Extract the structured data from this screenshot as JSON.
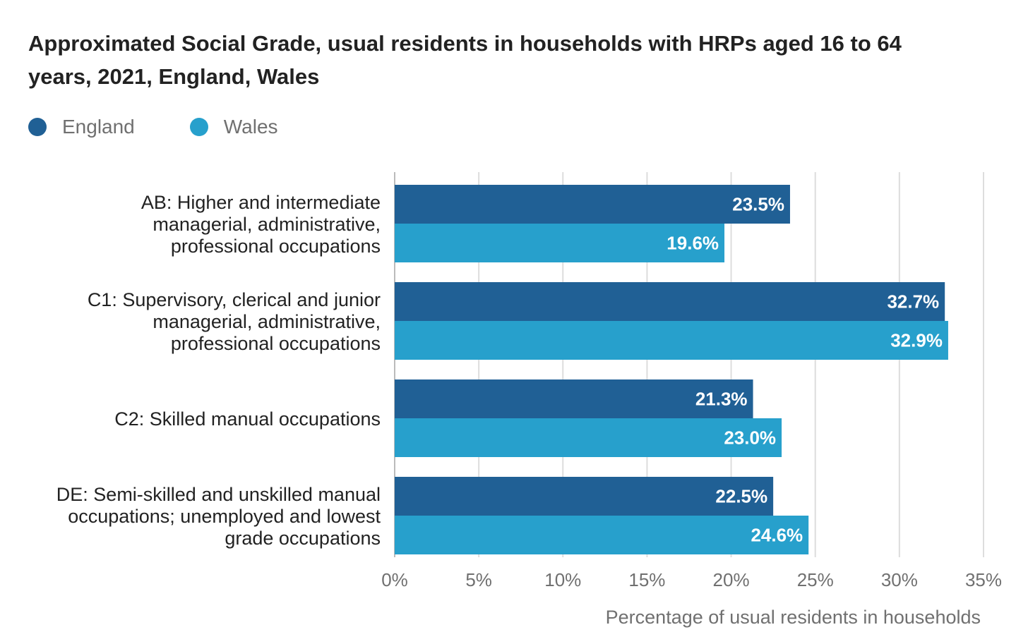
{
  "chart_data": {
    "type": "bar",
    "orientation": "horizontal",
    "title": "Approximated Social Grade, usual residents in households with HRPs aged 16 to 64 years, 2021, England, Wales",
    "categories": [
      [
        "AB: Higher and intermediate",
        "managerial, administrative,",
        "professional occupations"
      ],
      [
        "C1: Supervisory, clerical and junior",
        "managerial, administrative,",
        "professional occupations"
      ],
      [
        "C2: Skilled manual occupations"
      ],
      [
        "DE: Semi-skilled and unskilled manual",
        "occupations; unemployed and lowest",
        "grade occupations"
      ]
    ],
    "series": [
      {
        "name": "England",
        "color": "#206095",
        "values": [
          23.5,
          32.7,
          21.3,
          22.5
        ],
        "labels": [
          "23.5%",
          "32.7%",
          "21.3%",
          "22.5%"
        ]
      },
      {
        "name": "Wales",
        "color": "#27a0cc",
        "values": [
          19.6,
          32.9,
          23.0,
          24.6
        ],
        "labels": [
          "19.6%",
          "32.9%",
          "23.0%",
          "24.6%"
        ]
      }
    ],
    "xlim": [
      0,
      35
    ],
    "xticks": [
      0,
      5,
      10,
      15,
      20,
      25,
      30,
      35
    ],
    "xtick_labels": [
      "0%",
      "5%",
      "10%",
      "15%",
      "20%",
      "25%",
      "30%",
      "35%"
    ],
    "xlabel": "Percentage of usual residents in households",
    "ylabel": "",
    "grid": true,
    "legend_position": "top-left"
  }
}
